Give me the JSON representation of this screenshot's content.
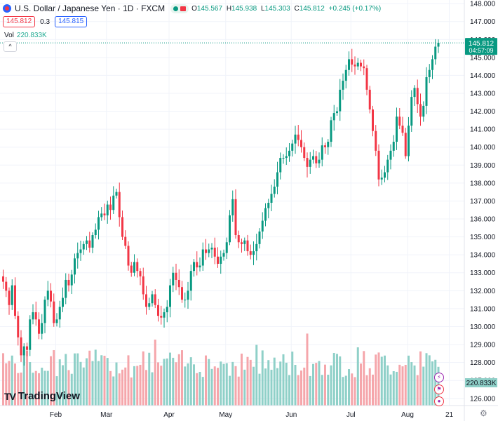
{
  "header": {
    "title": "U.S. Dollar / Japanese Yen · 1D · FXCM",
    "ohlc": {
      "o_label": "O",
      "o_value": "145.567",
      "h_label": "H",
      "h_value": "145.938",
      "l_label": "L",
      "l_value": "145.303",
      "c_label": "C",
      "c_value": "145.812",
      "change": "+0.245 (+0.17%)"
    },
    "sell_price": "145.812",
    "spread": "0.3",
    "buy_price": "145.815",
    "volume_label": "Vol",
    "volume_value": "220.833K",
    "collapse_glyph": "^"
  },
  "price_axis": {
    "labels": [
      "148.000",
      "147.000",
      "146.000",
      "145.000",
      "144.000",
      "143.000",
      "142.000",
      "141.000",
      "140.000",
      "139.000",
      "138.000",
      "137.000",
      "136.000",
      "135.000",
      "134.000",
      "133.000",
      "132.000",
      "131.000",
      "130.000",
      "129.000",
      "128.000",
      "127.000",
      "126.000"
    ],
    "current_price": "145.812",
    "countdown": "04:57:09",
    "volume_badge": "220.833K"
  },
  "time_axis": {
    "labels": [
      "Feb",
      "Mar",
      "Apr",
      "May",
      "Jun",
      "Jul",
      "Aug",
      "21"
    ]
  },
  "logo": {
    "mark": "TV",
    "text": "TradingView"
  },
  "icons": {
    "symbol": "currency-flag-icon",
    "market": "market-status-icon",
    "events": [
      "lightning-icon",
      "us-flag-icon",
      "japan-flag-icon"
    ],
    "settings": "gear-icon"
  },
  "colors": {
    "up": "#089981",
    "down": "#f23645",
    "volume_up": "#8fd0c8",
    "volume_down": "#f5a6ab",
    "brand": "#2962ff"
  },
  "chart_data": {
    "type": "candlestick",
    "title": "U.S. Dollar / Japanese Yen · 1D · FXCM",
    "ylim": [
      125.6,
      148.2
    ],
    "x_labels": [
      "Feb",
      "Mar",
      "Apr",
      "May",
      "Jun",
      "Jul",
      "Aug",
      "21"
    ],
    "close": [
      132.5,
      132.0,
      131.2,
      132.3,
      130.6,
      129.4,
      128.4,
      128.9,
      128.7,
      130.4,
      130.8,
      130.4,
      129.6,
      130.2,
      131.5,
      132.0,
      131.4,
      130.2,
      130.4,
      131.1,
      131.6,
      132.6,
      132.3,
      132.9,
      133.8,
      134.1,
      134.3,
      134.6,
      134.8,
      134.4,
      135.1,
      135.4,
      136.1,
      136.3,
      136.2,
      136.8,
      136.5,
      137.3,
      137.5,
      136.1,
      135.0,
      134.5,
      133.4,
      133.0,
      133.6,
      133.1,
      132.8,
      131.8,
      131.1,
      131.3,
      131.8,
      131.2,
      130.6,
      130.5,
      130.8,
      131.1,
      132.3,
      133.0,
      132.6,
      132.2,
      131.5,
      131.5,
      132.0,
      133.1,
      133.6,
      133.3,
      133.4,
      134.3,
      134.1,
      134.3,
      134.4,
      133.9,
      133.5,
      133.9,
      134.1,
      134.7,
      136.2,
      137.1,
      135.1,
      134.7,
      134.6,
      134.8,
      134.2,
      134.0,
      134.2,
      134.6,
      135.3,
      135.9,
      136.6,
      136.9,
      137.4,
      137.8,
      138.6,
      139.4,
      139.4,
      139.5,
      139.8,
      140.2,
      140.7,
      140.4,
      140.0,
      139.4,
      138.9,
      139.3,
      139.5,
      139.1,
      139.3,
      140.1,
      140.0,
      140.3,
      141.5,
      141.9,
      142.0,
      143.2,
      143.7,
      144.3,
      144.9,
      144.6,
      144.5,
      144.7,
      144.5,
      144.4,
      143.2,
      142.1,
      140.9,
      139.8,
      138.2,
      138.3,
      138.6,
      139.3,
      139.8,
      140.3,
      141.7,
      141.2,
      140.8,
      139.5,
      141.2,
      142.8,
      143.3,
      142.4,
      141.7,
      142.3,
      143.9,
      144.3,
      144.9,
      145.6,
      145.812
    ]
  }
}
